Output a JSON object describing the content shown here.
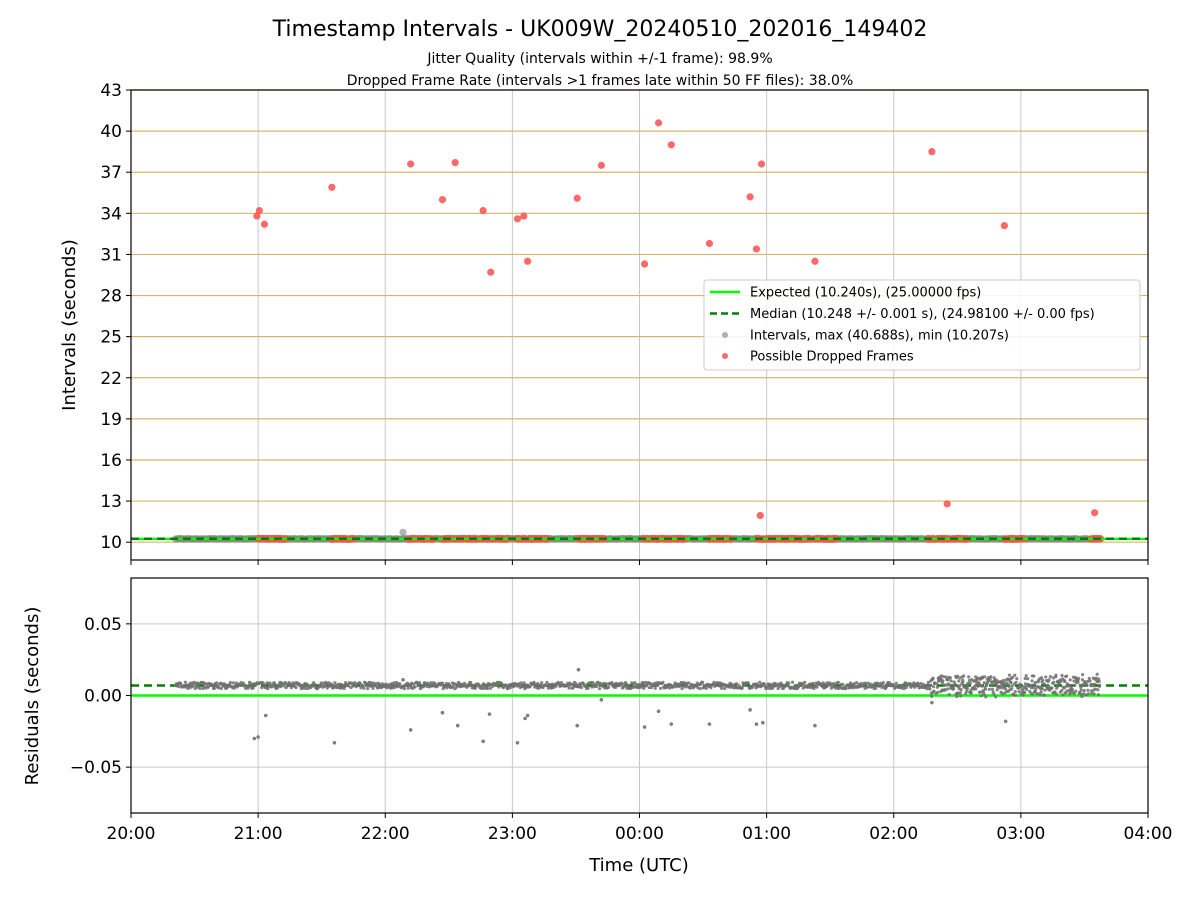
{
  "chart_data": {
    "type": "scatter",
    "title": "Timestamp Intervals - UK009W_20240510_202016_149402",
    "subtitle_lines": [
      "Jitter Quality (intervals within +/-1 frame): 98.9%",
      "Dropped Frame Rate (intervals >1 frames late within 50 FF files): 38.0%"
    ],
    "xlabel": "Time (UTC)",
    "xticks": [
      "20:00",
      "21:00",
      "22:00",
      "23:00",
      "00:00",
      "01:00",
      "02:00",
      "03:00",
      "04:00"
    ],
    "xlim_hours": [
      20,
      28
    ],
    "top_panel": {
      "ylabel": "Intervals (seconds)",
      "ylim": [
        8.7,
        43
      ],
      "yticks": [
        10,
        13,
        16,
        19,
        22,
        25,
        28,
        31,
        34,
        37,
        40,
        43
      ],
      "grid": true,
      "horizontal_grid_color": "#d4b86a",
      "expected_line": 10.24,
      "median_line": 10.248,
      "legend_location": "center-right",
      "legend": [
        {
          "label": "Expected (10.240s), (25.00000 fps)",
          "style": "line",
          "color": "#00ff00"
        },
        {
          "label": "Median (10.248 +/- 0.001 s), (24.98100 +/- 0.00 fps)",
          "style": "dashed",
          "color": "#008000"
        },
        {
          "label": "Intervals, max (40.688s), min (10.207s)",
          "style": "dot",
          "color": "#9e9e9e"
        },
        {
          "label": "Possible Dropped Frames",
          "style": "dot",
          "color": "#ff4d4d"
        }
      ],
      "series": [
        {
          "name": "Intervals",
          "color": "#808080",
          "range_hours": [
            20.35,
            27.62
          ],
          "baseline": 10.25,
          "outliers": [
            {
              "x": 22.14,
              "y": 10.72
            }
          ]
        },
        {
          "name": "Possible Dropped Frames",
          "color": "#ff4d4d",
          "points": [
            {
              "x": 20.99,
              "y": 33.8
            },
            {
              "x": 21.01,
              "y": 34.2
            },
            {
              "x": 21.05,
              "y": 33.2
            },
            {
              "x": 21.58,
              "y": 35.9
            },
            {
              "x": 22.2,
              "y": 37.6
            },
            {
              "x": 22.45,
              "y": 35.0
            },
            {
              "x": 22.55,
              "y": 37.7
            },
            {
              "x": 22.77,
              "y": 34.2
            },
            {
              "x": 22.83,
              "y": 29.7
            },
            {
              "x": 23.04,
              "y": 33.6
            },
            {
              "x": 23.09,
              "y": 33.8
            },
            {
              "x": 23.12,
              "y": 30.5
            },
            {
              "x": 23.51,
              "y": 35.1
            },
            {
              "x": 23.7,
              "y": 37.5
            },
            {
              "x": 24.04,
              "y": 30.3
            },
            {
              "x": 24.15,
              "y": 40.6
            },
            {
              "x": 24.25,
              "y": 39.0
            },
            {
              "x": 24.55,
              "y": 31.8
            },
            {
              "x": 24.87,
              "y": 35.2
            },
            {
              "x": 24.92,
              "y": 31.4
            },
            {
              "x": 24.95,
              "y": 11.95
            },
            {
              "x": 24.96,
              "y": 37.6
            },
            {
              "x": 25.38,
              "y": 30.5
            },
            {
              "x": 26.3,
              "y": 38.5
            },
            {
              "x": 26.42,
              "y": 12.8
            },
            {
              "x": 26.87,
              "y": 33.1
            },
            {
              "x": 27.58,
              "y": 12.15
            }
          ],
          "baseline_clusters_hours": [
            [
              21.0,
              21.22
            ],
            [
              21.58,
              21.75
            ],
            [
              22.18,
              22.38
            ],
            [
              22.45,
              22.73
            ],
            [
              22.75,
              22.97
            ],
            [
              23.03,
              23.28
            ],
            [
              23.52,
              23.73
            ],
            [
              24.03,
              24.36
            ],
            [
              24.55,
              24.72
            ],
            [
              24.92,
              25.35
            ],
            [
              25.38,
              25.55
            ],
            [
              26.27,
              26.58
            ],
            [
              26.87,
              27.03
            ],
            [
              27.55,
              27.63
            ]
          ]
        }
      ]
    },
    "bottom_panel": {
      "ylabel": "Residuals (seconds)",
      "ylim": [
        -0.082,
        0.082
      ],
      "yticks": [
        -0.05,
        0.0,
        0.05
      ],
      "ytick_labels": [
        "−0.05",
        "0.00",
        "0.05"
      ],
      "grid": true,
      "expected_line": 0.0,
      "median_line": 0.007,
      "series": [
        {
          "name": "Residuals",
          "color": "#707070",
          "range_hours": [
            20.35,
            27.62
          ],
          "baseline": 0.007,
          "noisy_range_hours": [
            26.28,
            27.62
          ],
          "outliers": [
            {
              "x": 20.97,
              "y": -0.03
            },
            {
              "x": 21.0,
              "y": -0.029
            },
            {
              "x": 21.06,
              "y": -0.014
            },
            {
              "x": 21.6,
              "y": -0.033
            },
            {
              "x": 22.2,
              "y": -0.024
            },
            {
              "x": 22.45,
              "y": -0.012
            },
            {
              "x": 22.57,
              "y": -0.021
            },
            {
              "x": 22.77,
              "y": -0.032
            },
            {
              "x": 22.82,
              "y": -0.013
            },
            {
              "x": 23.04,
              "y": -0.033
            },
            {
              "x": 23.1,
              "y": -0.016
            },
            {
              "x": 23.12,
              "y": -0.014
            },
            {
              "x": 23.51,
              "y": -0.021
            },
            {
              "x": 23.7,
              "y": -0.003
            },
            {
              "x": 24.04,
              "y": -0.022
            },
            {
              "x": 24.15,
              "y": -0.011
            },
            {
              "x": 24.25,
              "y": -0.02
            },
            {
              "x": 24.55,
              "y": -0.02
            },
            {
              "x": 24.87,
              "y": -0.01
            },
            {
              "x": 24.92,
              "y": -0.02
            },
            {
              "x": 24.97,
              "y": -0.019
            },
            {
              "x": 25.38,
              "y": -0.021
            },
            {
              "x": 26.3,
              "y": -0.005
            },
            {
              "x": 26.88,
              "y": -0.018
            },
            {
              "x": 23.52,
              "y": 0.018
            },
            {
              "x": 22.14,
              "y": 0.011
            }
          ]
        }
      ]
    },
    "colors": {
      "expected": "#00ff00",
      "median": "#008000",
      "intervals": "#808080",
      "dropped": "#ff4d4d",
      "gridline": "#c8c8c8",
      "horizontal_grid": "#d4b86a"
    }
  }
}
